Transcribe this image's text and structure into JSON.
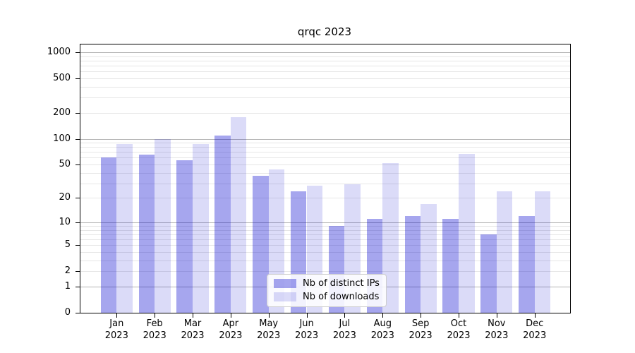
{
  "title": "qrqc 2023",
  "chart_data": {
    "type": "bar",
    "title": "qrqc 2023",
    "scale": "log(value+1), symlog-like with 0 baseline",
    "categories": [
      "Jan",
      "Feb",
      "Mar",
      "Apr",
      "May",
      "Jun",
      "Jul",
      "Aug",
      "Sep",
      "Oct",
      "Nov",
      "Dec"
    ],
    "year_label": "2023",
    "series": [
      {
        "name": "Nb of distinct IPs",
        "color": "rgba(0,0,205,0.35)",
        "values": [
          60,
          65,
          56,
          108,
          37,
          24,
          9,
          11,
          12,
          11,
          7,
          12
        ]
      },
      {
        "name": "Nb of downloads",
        "color": "rgba(0,0,205,0.14)",
        "values": [
          87,
          100,
          87,
          178,
          44,
          28,
          29,
          52,
          17,
          66,
          24,
          24
        ]
      }
    ],
    "y_ticks": [
      0,
      1,
      2,
      5,
      10,
      20,
      50,
      100,
      200,
      500,
      1000
    ],
    "ylim": [
      0,
      1250
    ],
    "xlabel": "",
    "ylabel": "",
    "grid": "major gray + minor light-gray horizontal lines",
    "legend_position": "lower center"
  },
  "legend": {
    "items": [
      {
        "label": "Nb of distinct IPs"
      },
      {
        "label": "Nb of downloads"
      }
    ]
  }
}
